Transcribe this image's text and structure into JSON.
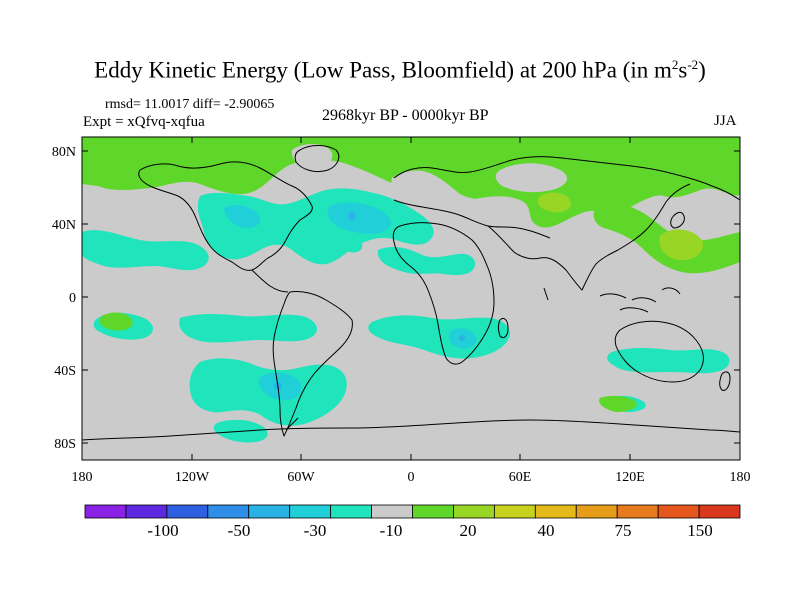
{
  "title": {
    "main": "Eddy Kinetic Energy (Low Pass, Bloomfield) at 200 hPa (in m",
    "sup1": "2",
    "mid": "s",
    "sup2": "-2",
    "end": ")"
  },
  "stats": "rmsd= 11.0017 diff= -2.90065",
  "experiment": "Expt = xQfvq-xqfua",
  "period": "2968kyr BP - 0000kyr BP",
  "season": "JJA",
  "lat_labels": [
    "80N",
    "40N",
    "0",
    "40S",
    "80S"
  ],
  "lon_labels": [
    "180",
    "120W",
    "60W",
    "0",
    "60E",
    "120E",
    "180"
  ],
  "colorbar": {
    "labels": [
      "-100",
      "-50",
      "-30",
      "-10",
      "20",
      "40",
      "75",
      "150"
    ],
    "colors": [
      "#8a22e6",
      "#5d28e0",
      "#2f60e2",
      "#2f8ee8",
      "#29b2e4",
      "#21cfd8",
      "#1fe4bc",
      "#cbcbcb",
      "#5fd72a",
      "#98d626",
      "#c6d21e",
      "#e3ba19",
      "#e69d1a",
      "#e77a1d",
      "#e6571d",
      "#d9381c"
    ]
  },
  "map": {
    "background_color": "#cbcbcb",
    "coastline_color": "#000000"
  }
}
